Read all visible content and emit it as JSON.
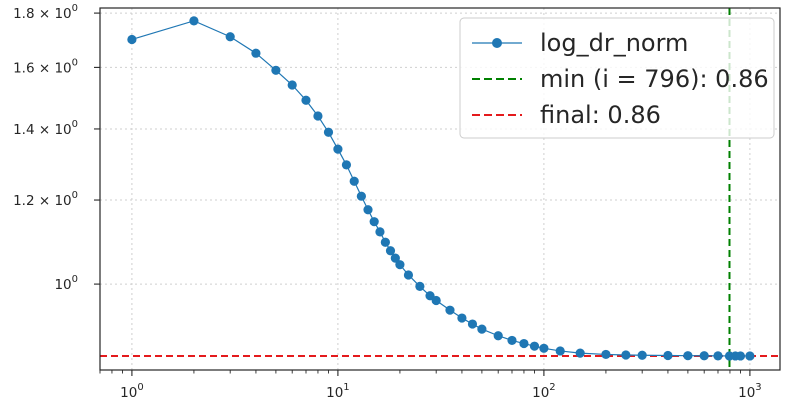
{
  "chart_data": {
    "type": "line",
    "xscale": "log",
    "yscale": "log",
    "xlim": [
      0.7,
      1400
    ],
    "ylim": [
      0.83,
      1.82
    ],
    "grid": true,
    "legend_position": "top-right",
    "x_ticks": [
      {
        "value": 1,
        "base": "10",
        "exp": "0"
      },
      {
        "value": 10,
        "base": "10",
        "exp": "1"
      },
      {
        "value": 100,
        "base": "10",
        "exp": "2"
      },
      {
        "value": 1000,
        "base": "10",
        "exp": "3"
      }
    ],
    "y_ticks": [
      {
        "value": 1.0,
        "mant": "",
        "base": "10",
        "exp": "0"
      },
      {
        "value": 1.2,
        "mant": "1.2 × ",
        "base": "10",
        "exp": "0"
      },
      {
        "value": 1.4,
        "mant": "1.4 × ",
        "base": "10",
        "exp": "0"
      },
      {
        "value": 1.6,
        "mant": "1.6 × ",
        "base": "10",
        "exp": "0"
      },
      {
        "value": 1.8,
        "mant": "1.8 × ",
        "base": "10",
        "exp": "0"
      }
    ],
    "series": [
      {
        "name": "log_dr_norm",
        "color": "#1f77b4",
        "x": [
          1,
          2,
          3,
          4,
          5,
          6,
          7,
          8,
          9,
          10,
          11,
          12,
          13,
          14,
          15,
          16,
          17,
          18,
          19,
          20,
          22,
          25,
          28,
          30,
          35,
          40,
          45,
          50,
          60,
          70,
          80,
          90,
          100,
          120,
          150,
          200,
          250,
          300,
          400,
          500,
          600,
          700,
          796,
          850,
          900,
          1000
        ],
        "y": [
          1.7,
          1.77,
          1.71,
          1.65,
          1.59,
          1.54,
          1.49,
          1.44,
          1.39,
          1.34,
          1.295,
          1.25,
          1.21,
          1.175,
          1.145,
          1.12,
          1.095,
          1.075,
          1.058,
          1.043,
          1.02,
          0.995,
          0.975,
          0.965,
          0.945,
          0.929,
          0.917,
          0.907,
          0.894,
          0.885,
          0.879,
          0.874,
          0.87,
          0.865,
          0.861,
          0.8585,
          0.8575,
          0.857,
          0.8565,
          0.8562,
          0.856,
          0.8558,
          0.8557,
          0.8557,
          0.8557,
          0.8557
        ]
      }
    ],
    "hlines": [
      {
        "name": "final: 0.86",
        "y": 0.8557,
        "color": "#e41a1c"
      }
    ],
    "vlines": [
      {
        "name": "min (i = 796): 0.86",
        "x": 796,
        "color": "#008000"
      }
    ],
    "legend": [
      {
        "label": "log_dr_norm",
        "kind": "series",
        "color": "#1f77b4"
      },
      {
        "label": "min (i = 796): 0.86",
        "kind": "dashed",
        "color": "#008000"
      },
      {
        "label": "final: 0.86",
        "kind": "dashed",
        "color": "#e41a1c"
      }
    ]
  }
}
